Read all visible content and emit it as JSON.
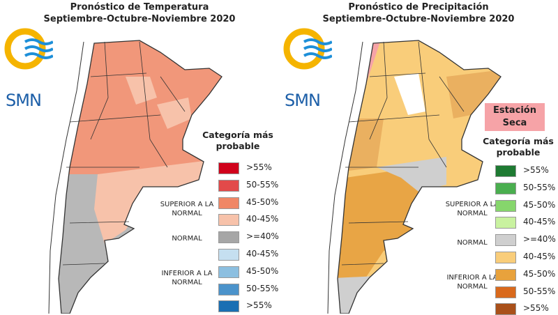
{
  "left": {
    "title_line1": "Pronóstico de Temperatura",
    "title_line2": "Septiembre-Octubre-Noviembre 2020",
    "logo_text": "SMN",
    "legend_title": "Categoría más probable",
    "categories": {
      "superior": "SUPERIOR A LA NORMAL",
      "normal": "NORMAL",
      "inferior": "INFERIOR A LA NORMAL"
    },
    "legend": [
      {
        "label": ">55%",
        "color": "#d0021b"
      },
      {
        "label": "50-55%",
        "color": "#e24a4a"
      },
      {
        "label": "45-50%",
        "color": "#f08766"
      },
      {
        "label": "40-45%",
        "color": "#f7c2aa"
      },
      {
        "label": ">=40%",
        "color": "#a6a6a6"
      },
      {
        "label": "40-45%",
        "color": "#c5dff0"
      },
      {
        "label": "45-50%",
        "color": "#8cbfe0"
      },
      {
        "label": "50-55%",
        "color": "#4b93cb"
      },
      {
        "label": ">55%",
        "color": "#1a6fb3"
      }
    ]
  },
  "right": {
    "title_line1": "Pronóstico de Precipitación",
    "title_line2": "Septiembre-Octubre-Noviembre 2020",
    "logo_text": "SMN",
    "dry_season_label": "Estación Seca",
    "dry_season_color": "#f6a3a7",
    "legend_title": "Categoría más probable",
    "categories": {
      "superior": "SUPERIOR A LA NORMAL",
      "normal": "NORMAL",
      "inferior": "INFERIOR A LA NORMAL"
    },
    "legend": [
      {
        "label": ">55%",
        "color": "#1e7a32"
      },
      {
        "label": "50-55%",
        "color": "#4aae4f"
      },
      {
        "label": "45-50%",
        "color": "#86d66c"
      },
      {
        "label": "40-45%",
        "color": "#c9f2a0"
      },
      {
        "label": ">=40%",
        "color": "#cfcfcf"
      },
      {
        "label": "40-45%",
        "color": "#f9cd7a"
      },
      {
        "label": "45-50%",
        "color": "#e8a23c"
      },
      {
        "label": "50-55%",
        "color": "#d9691c"
      },
      {
        "label": ">55%",
        "color": "#a9501a"
      }
    ]
  }
}
